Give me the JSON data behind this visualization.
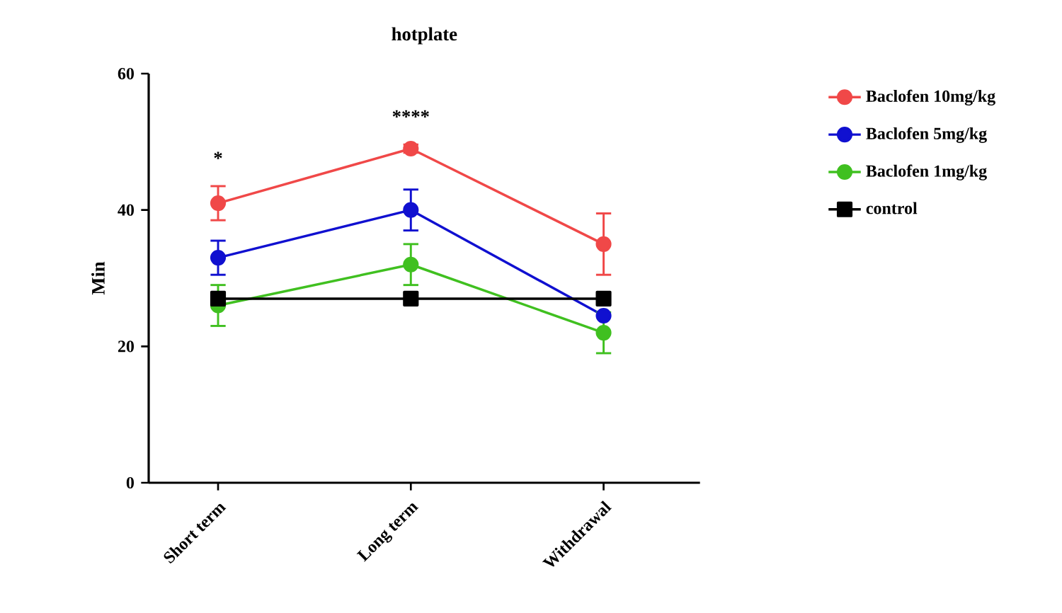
{
  "chart_data": {
    "type": "line",
    "title": "hotplate",
    "ylabel": "Min",
    "categories": [
      "Short term",
      "Long term",
      "Withdrawal"
    ],
    "series": [
      {
        "name": "Baclofen 10mg/kg",
        "color": "#f04848",
        "values": [
          41,
          49,
          35
        ],
        "errors": [
          2.5,
          0.6,
          4.5
        ],
        "marker": "circle"
      },
      {
        "name": "Baclofen 5mg/kg",
        "color": "#1010d0",
        "values": [
          33,
          40,
          24.5
        ],
        "errors": [
          2.5,
          3,
          null
        ],
        "marker": "circle"
      },
      {
        "name": "Baclofen 1mg/kg",
        "color": "#40c020",
        "values": [
          26,
          32,
          22
        ],
        "errors": [
          3,
          3,
          3
        ],
        "marker": "circle"
      },
      {
        "name": "control",
        "color": "#000000",
        "values": [
          27,
          27,
          27
        ],
        "marker": "square"
      }
    ],
    "ylim": [
      0,
      60
    ],
    "yticks": [
      0,
      20,
      40,
      60
    ],
    "grid": false,
    "legend": "right",
    "line_style": "solid",
    "annotations": [
      "*",
      "****"
    ]
  }
}
